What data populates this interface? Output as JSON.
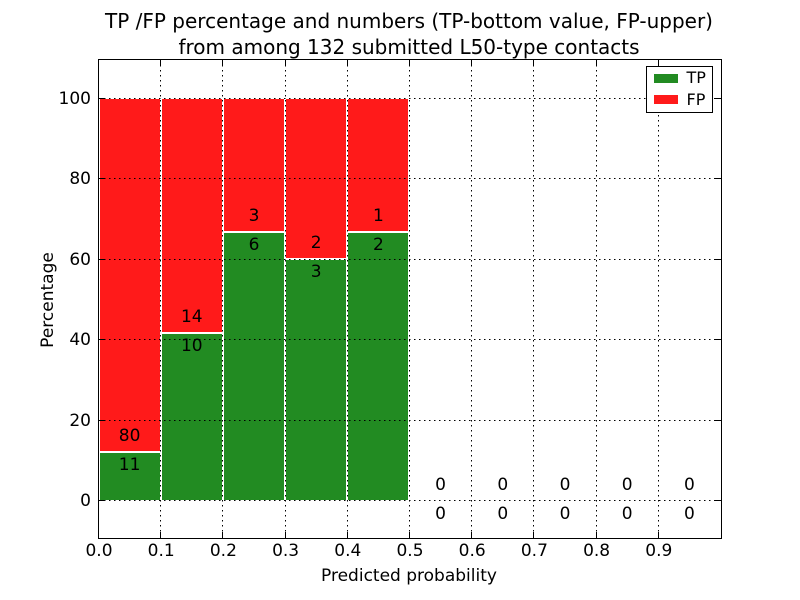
{
  "chart_data": {
    "type": "bar",
    "stacked": true,
    "title_line1": "TP /FP percentage and numbers (TP-bottom value, FP-upper)",
    "title_line2": "from among 132 submitted L50-type contacts",
    "xlabel": "Predicted probability",
    "ylabel": "Percentage",
    "total_contacts": 132,
    "xlim": [
      0.0,
      1.0
    ],
    "ylim": [
      -9.2,
      109.7
    ],
    "grid": true,
    "xticks": [
      "0.0",
      "0.1",
      "0.2",
      "0.3",
      "0.4",
      "0.5",
      "0.6",
      "0.7",
      "0.8",
      "0.9"
    ],
    "xtick_values": [
      0.0,
      0.1,
      0.2,
      0.3,
      0.4,
      0.5,
      0.6,
      0.7,
      0.8,
      0.9
    ],
    "yticks": [
      "0",
      "20",
      "40",
      "60",
      "80",
      "100"
    ],
    "ytick_values": [
      0,
      20,
      40,
      60,
      80,
      100
    ],
    "legend": {
      "position": "upper right",
      "entries": [
        {
          "label": "TP",
          "color": "#228B22"
        },
        {
          "label": "FP",
          "color": "#ff1a1a"
        }
      ]
    },
    "colors": {
      "tp": "#228B22",
      "fp": "#ff1a1a",
      "bar_edge": "#ffffff",
      "grid": "#000000"
    },
    "bins": [
      {
        "range": [
          0.0,
          0.1
        ],
        "tp": 11,
        "fp": 80,
        "tp_pct": 12.09,
        "fp_pct": 87.91
      },
      {
        "range": [
          0.1,
          0.2
        ],
        "tp": 10,
        "fp": 14,
        "tp_pct": 41.67,
        "fp_pct": 58.33
      },
      {
        "range": [
          0.2,
          0.3
        ],
        "tp": 6,
        "fp": 3,
        "tp_pct": 66.67,
        "fp_pct": 33.33
      },
      {
        "range": [
          0.3,
          0.4
        ],
        "tp": 3,
        "fp": 2,
        "tp_pct": 60.0,
        "fp_pct": 40.0
      },
      {
        "range": [
          0.4,
          0.5
        ],
        "tp": 2,
        "fp": 1,
        "tp_pct": 66.67,
        "fp_pct": 33.33
      },
      {
        "range": [
          0.5,
          0.6
        ],
        "tp": 0,
        "fp": 0,
        "tp_pct": 0,
        "fp_pct": 0
      },
      {
        "range": [
          0.6,
          0.7
        ],
        "tp": 0,
        "fp": 0,
        "tp_pct": 0,
        "fp_pct": 0
      },
      {
        "range": [
          0.7,
          0.8
        ],
        "tp": 0,
        "fp": 0,
        "tp_pct": 0,
        "fp_pct": 0
      },
      {
        "range": [
          0.8,
          0.9
        ],
        "tp": 0,
        "fp": 0,
        "tp_pct": 0,
        "fp_pct": 0
      },
      {
        "range": [
          0.9,
          1.0
        ],
        "tp": 0,
        "fp": 0,
        "tp_pct": 0,
        "fp_pct": 0
      }
    ]
  }
}
